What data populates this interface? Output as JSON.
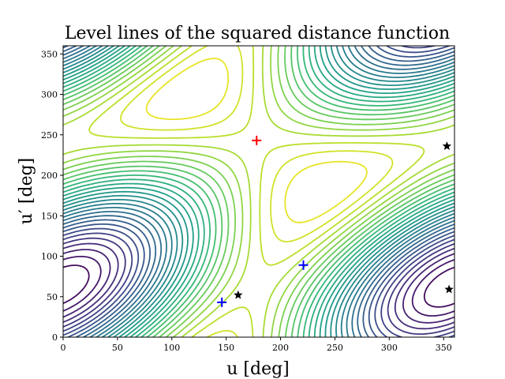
{
  "chart_data": {
    "type": "contour",
    "title": "Level lines of the squared distance function",
    "xlabel": "u [deg]",
    "ylabel": "u′ [deg]",
    "xlim": [
      0,
      360
    ],
    "ylim": [
      0,
      360
    ],
    "xticks": [
      0,
      50,
      100,
      150,
      200,
      250,
      300,
      350
    ],
    "yticks": [
      0,
      50,
      100,
      150,
      200,
      250,
      300,
      350
    ],
    "colormap": "viridis",
    "level_count": 30,
    "maximum": {
      "u": 178,
      "u_prime": 243,
      "marker": "plus",
      "color": "#ff0000"
    },
    "saddle_points": [
      {
        "u": 146,
        "u_prime": 43,
        "marker": "plus",
        "color": "#0000ff"
      },
      {
        "u": 221,
        "u_prime": 89,
        "marker": "plus",
        "color": "#0000ff"
      }
    ],
    "minima": [
      {
        "u": 161,
        "u_prime": 52,
        "marker": "star",
        "color": "#000000"
      },
      {
        "u": 353,
        "u_prime": 236,
        "marker": "star",
        "color": "#000000"
      },
      {
        "u": 355,
        "u_prime": 59,
        "marker": "star",
        "color": "#000000"
      }
    ]
  }
}
